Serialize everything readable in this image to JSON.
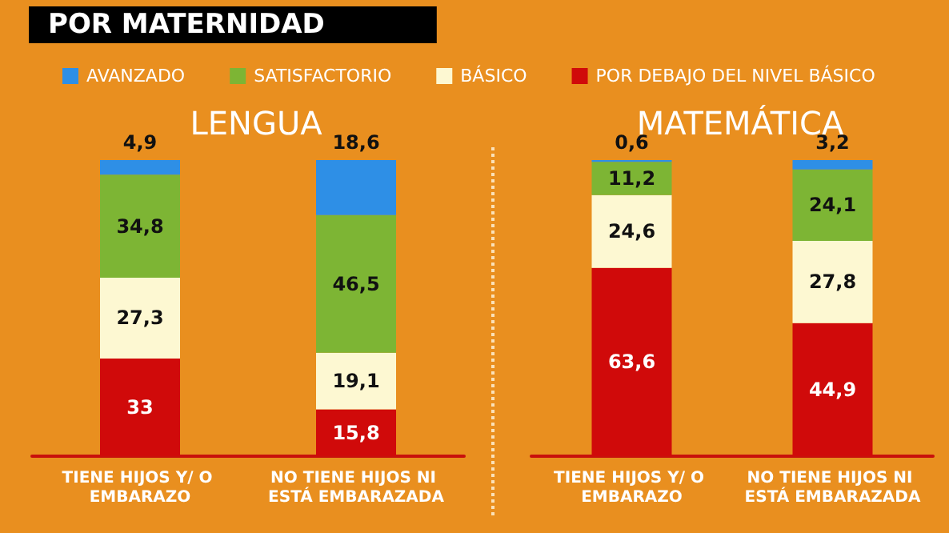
{
  "chart_data": [
    {
      "type": "bar",
      "title": "POR MATERNIDAD",
      "subtitle": "LENGUA",
      "categories": [
        "TIENE HIJOS Y/ O EMBARAZO",
        "NO TIENE HIJOS NI ESTÁ EMBARAZADA"
      ],
      "stacked": true,
      "legend": "top",
      "series": [
        {
          "name": "POR DEBAJO DEL NIVEL BÁSICO",
          "color": "#d00a0a",
          "values": [
            33,
            15.8
          ],
          "value_labels": [
            "33",
            "15,8"
          ]
        },
        {
          "name": "BÁSICO",
          "color": "#fdf8d2",
          "values": [
            27.3,
            19.1
          ],
          "value_labels": [
            "27,3",
            "19,1"
          ]
        },
        {
          "name": "SATISFACTORIO",
          "color": "#7db534",
          "values": [
            34.8,
            46.5
          ],
          "value_labels": [
            "34,8",
            "46,5"
          ]
        },
        {
          "name": "AVANZADO",
          "color": "#2e8fe6",
          "values": [
            4.9,
            18.6
          ],
          "value_labels": [
            "4,9",
            "18,6"
          ]
        }
      ]
    },
    {
      "type": "bar",
      "title": "MATEMÁTICA",
      "categories": [
        "TIENE HIJOS Y/ O EMBARAZO",
        "NO TIENE HIJOS NI ESTÁ EMBARAZADA"
      ],
      "stacked": true,
      "series": [
        {
          "name": "POR DEBAJO DEL NIVEL BÁSICO",
          "color": "#d00a0a",
          "values": [
            63.6,
            44.9
          ],
          "value_labels": [
            "63,6",
            "44,9"
          ]
        },
        {
          "name": "BÁSICO",
          "color": "#fdf8d2",
          "values": [
            24.6,
            27.8
          ],
          "value_labels": [
            "24,6",
            "27,8"
          ]
        },
        {
          "name": "SATISFACTORIO",
          "color": "#7db534",
          "values": [
            11.2,
            24.1
          ],
          "value_labels": [
            "11,2",
            "24,1"
          ]
        },
        {
          "name": "AVANZADO",
          "color": "#2e8fe6",
          "values": [
            0.6,
            3.2
          ],
          "value_labels": [
            "0,6",
            "3,2"
          ]
        }
      ]
    }
  ]
}
